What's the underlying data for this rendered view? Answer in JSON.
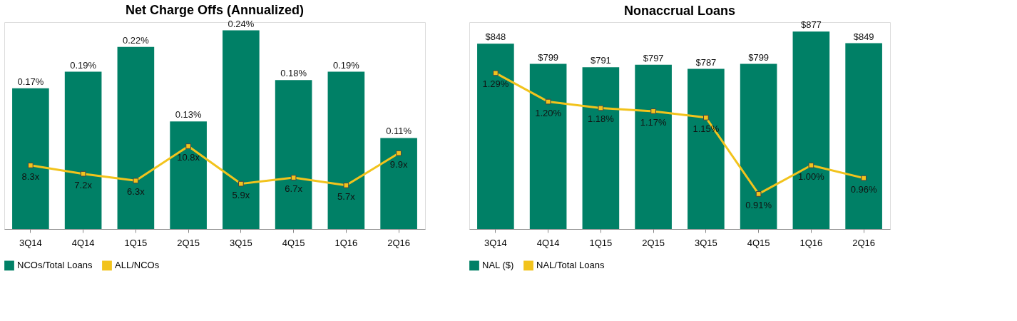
{
  "chart_data": [
    {
      "type": "bar",
      "title": "Net Charge Offs (Annualized)",
      "categories": [
        "3Q14",
        "4Q14",
        "1Q15",
        "2Q15",
        "3Q15",
        "4Q15",
        "1Q16",
        "2Q16"
      ],
      "ylim": [
        0,
        0.25
      ],
      "y2lim": [
        0,
        27
      ],
      "tick_labels": "x",
      "grid": false,
      "legend": "bottom",
      "marker": "square",
      "series": [
        {
          "name": "NCOs/Total Loans",
          "color": "#008066",
          "values": [
            0.17,
            0.19,
            0.22,
            0.13,
            0.24,
            0.18,
            0.19,
            0.11
          ],
          "value_labels": [
            "0.17%",
            "0.19%",
            "0.22%",
            "0.13%",
            "0.24%",
            "0.18%",
            "0.19%",
            "0.11%"
          ]
        },
        {
          "name": "ALL/NCOs",
          "type": "line",
          "axis": "y2",
          "color": "#f2c31c",
          "values": [
            8.3,
            7.2,
            6.3,
            10.8,
            5.9,
            6.7,
            5.7,
            9.9
          ],
          "value_labels": [
            "8.3x",
            "7.2x",
            "6.3x",
            "10.8x",
            "5.9x",
            "6.7x",
            "5.7x",
            "9.9x"
          ]
        }
      ]
    },
    {
      "type": "bar",
      "title": "Nonaccrual Loans",
      "categories": [
        "3Q14",
        "4Q14",
        "1Q15",
        "2Q15",
        "3Q15",
        "4Q15",
        "1Q16",
        "2Q16"
      ],
      "ylim": [
        400,
        900
      ],
      "y2lim": [
        0.8,
        1.45
      ],
      "tick_labels": "x",
      "grid": false,
      "legend": "bottom",
      "marker": "square",
      "series": [
        {
          "name": "NAL ($)",
          "color": "#008066",
          "values": [
            848,
            799,
            791,
            797,
            787,
            799,
            877,
            849
          ],
          "value_labels": [
            "$848",
            "$799",
            "$791",
            "$797",
            "$787",
            "$799",
            "$877",
            "$849"
          ]
        },
        {
          "name": "NAL/Total Loans",
          "type": "line",
          "axis": "y2",
          "color": "#f2c31c",
          "values": [
            1.29,
            1.2,
            1.18,
            1.17,
            1.15,
            0.91,
            1.0,
            0.96
          ],
          "value_labels": [
            "1.29%",
            "1.20%",
            "1.18%",
            "1.17%",
            "1.15%",
            "0.91%",
            "1.00%",
            "0.96%"
          ]
        }
      ]
    }
  ]
}
